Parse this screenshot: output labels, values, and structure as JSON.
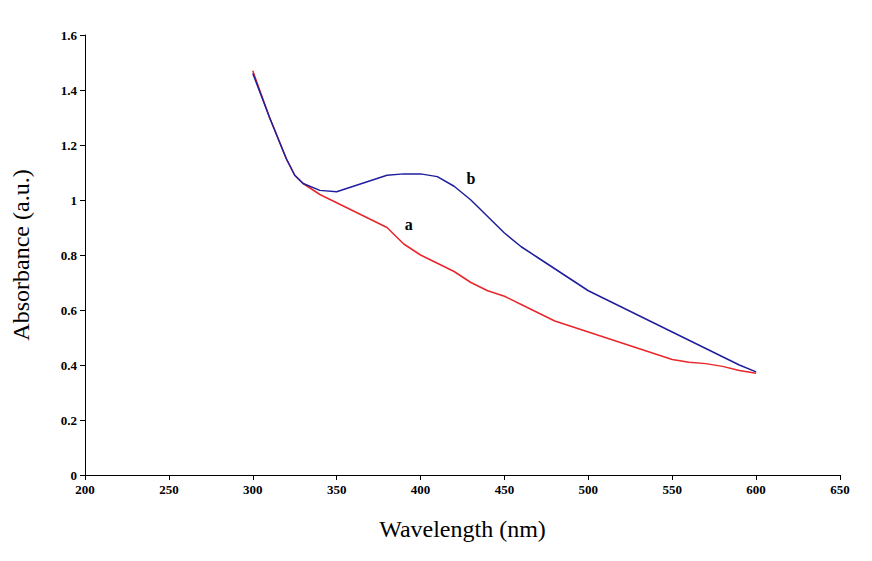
{
  "chart_data": {
    "type": "line",
    "x_label": "Wavelength (nm)",
    "y_label": "Absorbance (a.u.)",
    "xlim": [
      200,
      650
    ],
    "xticks": [
      200,
      250,
      300,
      350,
      400,
      450,
      500,
      550,
      600,
      650
    ],
    "ylim": [
      0,
      1.6
    ],
    "yticks": [
      0,
      0.2,
      0.4,
      0.6,
      0.8,
      1,
      1.2,
      1.4,
      1.6
    ],
    "grid": false,
    "x": [
      300,
      310,
      320,
      325,
      330,
      340,
      350,
      360,
      370,
      380,
      390,
      400,
      410,
      420,
      430,
      440,
      450,
      460,
      470,
      480,
      490,
      500,
      510,
      520,
      530,
      540,
      550,
      560,
      570,
      580,
      590,
      600
    ],
    "series": [
      {
        "name": "a",
        "color": "#e8262b",
        "values": [
          1.47,
          1.3,
          1.15,
          1.09,
          1.06,
          1.02,
          0.99,
          0.96,
          0.93,
          0.9,
          0.84,
          0.8,
          0.77,
          0.74,
          0.7,
          0.67,
          0.65,
          0.62,
          0.59,
          0.56,
          0.54,
          0.52,
          0.5,
          0.48,
          0.46,
          0.44,
          0.42,
          0.41,
          0.405,
          0.395,
          0.38,
          0.37
        ]
      },
      {
        "name": "b",
        "color": "#1f1f9e",
        "values": [
          1.46,
          1.3,
          1.15,
          1.09,
          1.06,
          1.035,
          1.03,
          1.05,
          1.07,
          1.09,
          1.095,
          1.095,
          1.085,
          1.05,
          1.0,
          0.94,
          0.88,
          0.83,
          0.79,
          0.75,
          0.71,
          0.67,
          0.64,
          0.61,
          0.58,
          0.55,
          0.52,
          0.49,
          0.46,
          0.43,
          0.4,
          0.375
        ]
      }
    ],
    "annotations": [
      {
        "text": "a",
        "x": 393,
        "y": 0.91
      },
      {
        "text": "b",
        "x": 430,
        "y": 1.08
      }
    ]
  }
}
